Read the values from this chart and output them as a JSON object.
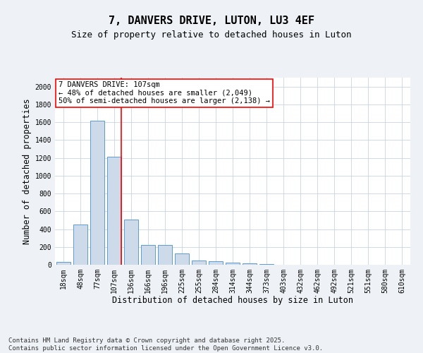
{
  "title1": "7, DANVERS DRIVE, LUTON, LU3 4EF",
  "title2": "Size of property relative to detached houses in Luton",
  "xlabel": "Distribution of detached houses by size in Luton",
  "ylabel": "Number of detached properties",
  "categories": [
    "18sqm",
    "48sqm",
    "77sqm",
    "107sqm",
    "136sqm",
    "166sqm",
    "196sqm",
    "225sqm",
    "255sqm",
    "284sqm",
    "314sqm",
    "344sqm",
    "373sqm",
    "403sqm",
    "432sqm",
    "462sqm",
    "492sqm",
    "521sqm",
    "551sqm",
    "580sqm",
    "610sqm"
  ],
  "values": [
    35,
    455,
    1620,
    1210,
    510,
    225,
    220,
    130,
    50,
    40,
    25,
    15,
    5,
    2,
    1,
    1,
    0,
    0,
    0,
    0,
    0
  ],
  "bar_color": "#ccdaea",
  "bar_edge_color": "#5b9bd5",
  "red_line_index": 3,
  "annotation_text": "7 DANVERS DRIVE: 107sqm\n← 48% of detached houses are smaller (2,049)\n50% of semi-detached houses are larger (2,138) →",
  "annotation_box_color": "white",
  "annotation_box_edge_color": "red",
  "red_line_color": "red",
  "ylim": [
    0,
    2100
  ],
  "yticks": [
    0,
    200,
    400,
    600,
    800,
    1000,
    1200,
    1400,
    1600,
    1800,
    2000
  ],
  "bg_color": "#eef2f7",
  "plot_bg_color": "white",
  "grid_color": "#c8d4e0",
  "footer": "Contains HM Land Registry data © Crown copyright and database right 2025.\nContains public sector information licensed under the Open Government Licence v3.0.",
  "title1_fontsize": 11,
  "title2_fontsize": 9,
  "xlabel_fontsize": 8.5,
  "ylabel_fontsize": 8.5,
  "tick_fontsize": 7,
  "annotation_fontsize": 7.5,
  "footer_fontsize": 6.5
}
